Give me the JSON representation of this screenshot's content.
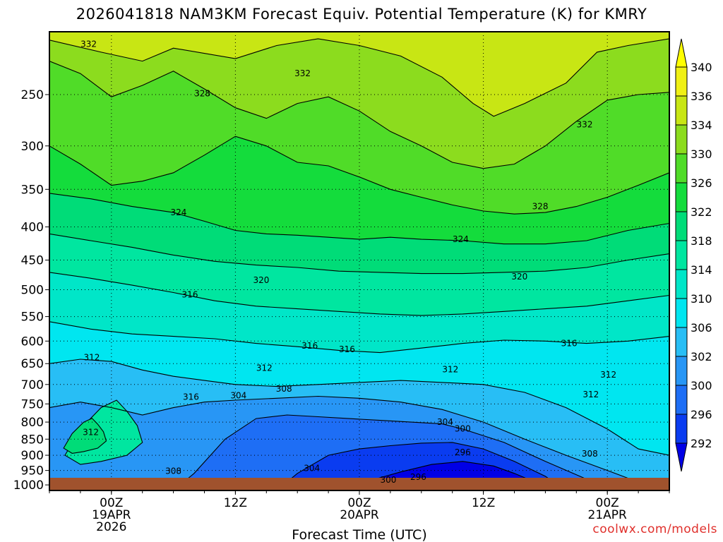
{
  "title": "2026041818 NAM3KM Forecast Equiv. Potential Temperature (K) for KMRY",
  "watermark": "coolwx.com/models",
  "chart_data": {
    "type": "heatmap",
    "title": "2026041818 NAM3KM Forecast Equiv. Potential Temperature (K) for KMRY",
    "xlabel": "Forecast Time (UTC)",
    "ylabel": "",
    "x_ticks": [
      {
        "hour": 6,
        "lines": [
          "00Z",
          "19APR",
          "2026"
        ]
      },
      {
        "hour": 18,
        "lines": [
          "12Z"
        ]
      },
      {
        "hour": 30,
        "lines": [
          "00Z",
          "20APR"
        ]
      },
      {
        "hour": 42,
        "lines": [
          "12Z"
        ]
      },
      {
        "hour": 54,
        "lines": [
          "00Z",
          "21APR"
        ]
      }
    ],
    "xlim_hours": [
      0,
      60
    ],
    "y_ticks": [
      1000,
      950,
      900,
      850,
      800,
      750,
      700,
      650,
      600,
      550,
      500,
      450,
      400,
      350,
      300,
      250
    ],
    "ylim": [
      1020,
      200
    ],
    "y_scale": "log-pressure",
    "colorbar": {
      "levels": [
        292,
        296,
        300,
        302,
        306,
        310,
        314,
        318,
        322,
        326,
        330,
        334,
        336,
        340
      ],
      "colors": [
        "#0000e6",
        "#0a3cf0",
        "#1e6ef5",
        "#2896f5",
        "#28bef5",
        "#00e6f0",
        "#00e6c8",
        "#00e6a0",
        "#00dc78",
        "#14dc3c",
        "#50dc28",
        "#8cdc1e",
        "#c8e614",
        "#f0f014",
        "#ffff00"
      ]
    },
    "contour_labels": [
      {
        "value": "332",
        "hour": 3.8,
        "p": 209
      },
      {
        "value": "332",
        "hour": 24.5,
        "p": 232
      },
      {
        "value": "332",
        "hour": 51.8,
        "p": 278
      },
      {
        "value": "328",
        "hour": 14.8,
        "p": 249
      },
      {
        "value": "328",
        "hour": 47.5,
        "p": 372
      },
      {
        "value": "324",
        "hour": 12.5,
        "p": 380
      },
      {
        "value": "324",
        "hour": 39.8,
        "p": 418
      },
      {
        "value": "320",
        "hour": 20.5,
        "p": 483
      },
      {
        "value": "320",
        "hour": 45.5,
        "p": 477
      },
      {
        "value": "316",
        "hour": 13.6,
        "p": 509
      },
      {
        "value": "316",
        "hour": 25.2,
        "p": 610
      },
      {
        "value": "316",
        "hour": 28.8,
        "p": 618
      },
      {
        "value": "316",
        "hour": 50.3,
        "p": 605
      },
      {
        "value": "316",
        "hour": 13.7,
        "p": 732
      },
      {
        "value": "312",
        "hour": 4.1,
        "p": 636
      },
      {
        "value": "312",
        "hour": 20.8,
        "p": 660
      },
      {
        "value": "312",
        "hour": 38.8,
        "p": 664
      },
      {
        "value": "312",
        "hour": 54.1,
        "p": 676
      },
      {
        "value": "312",
        "hour": 52.4,
        "p": 725
      },
      {
        "value": "312",
        "hour": 4.0,
        "p": 829
      },
      {
        "value": "308",
        "hour": 22.7,
        "p": 711
      },
      {
        "value": "308",
        "hour": 52.3,
        "p": 895
      },
      {
        "value": "308",
        "hour": 12.0,
        "p": 952
      },
      {
        "value": "304",
        "hour": 18.3,
        "p": 728
      },
      {
        "value": "304",
        "hour": 38.3,
        "p": 800
      },
      {
        "value": "304",
        "hour": 25.4,
        "p": 942
      },
      {
        "value": "300",
        "hour": 40.0,
        "p": 819
      },
      {
        "value": "300",
        "hour": 32.8,
        "p": 982
      },
      {
        "value": "296",
        "hour": 40.0,
        "p": 891
      },
      {
        "value": "296",
        "hour": 35.7,
        "p": 972
      }
    ]
  }
}
